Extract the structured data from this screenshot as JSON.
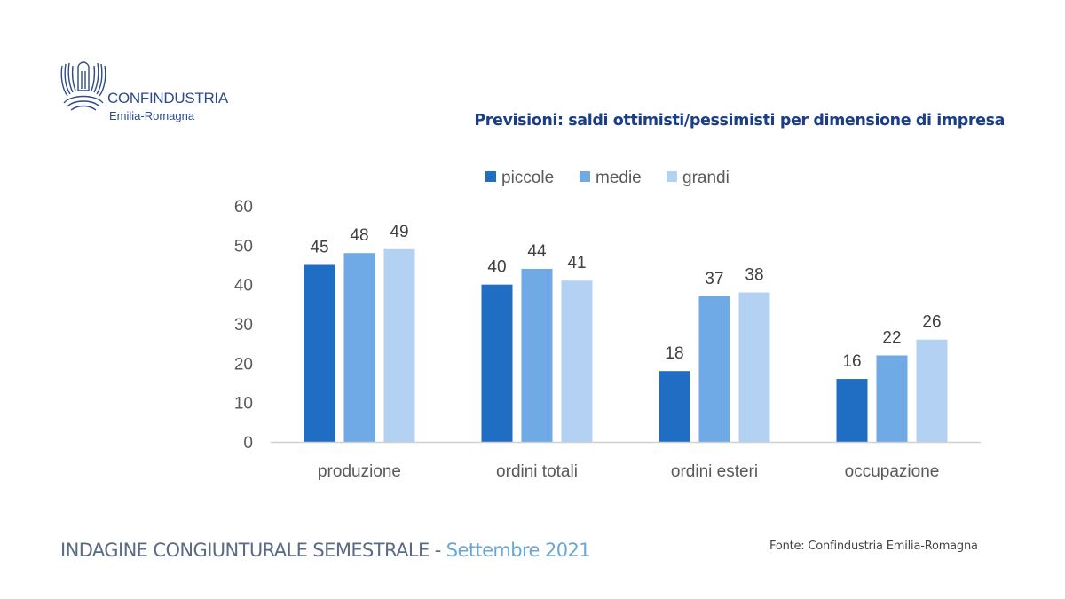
{
  "logo": {
    "icon": "eagle-logo-icon",
    "name": "CONFINDUSTRIA",
    "region": "Emilia-Romagna"
  },
  "footer": {
    "survey": "INDAGINE CONGIUNTURALE SEMESTRALE - ",
    "date": "Settembre 2021",
    "source": "Fonte: Confindustria Emilia-Romagna"
  },
  "chart_data": {
    "type": "bar",
    "title": "Previsioni: saldi ottimisti/pessimisti per dimensione di impresa",
    "xlabel": "",
    "ylabel": "",
    "categories": [
      "produzione",
      "ordini totali",
      "ordini esteri",
      "occupazione"
    ],
    "series": [
      {
        "name": "piccole",
        "color": "#1f6ec4",
        "values": [
          45,
          40,
          18,
          16
        ]
      },
      {
        "name": "medie",
        "color": "#6fa9e6",
        "values": [
          48,
          44,
          37,
          22
        ]
      },
      {
        "name": "grandi",
        "color": "#b3d1f3",
        "values": [
          49,
          41,
          38,
          26
        ]
      }
    ],
    "ylim": [
      0,
      60
    ],
    "yticks": [
      0,
      10,
      20,
      30,
      40,
      50,
      60
    ],
    "grid": false,
    "legend": "top-center",
    "data_labels": true
  }
}
